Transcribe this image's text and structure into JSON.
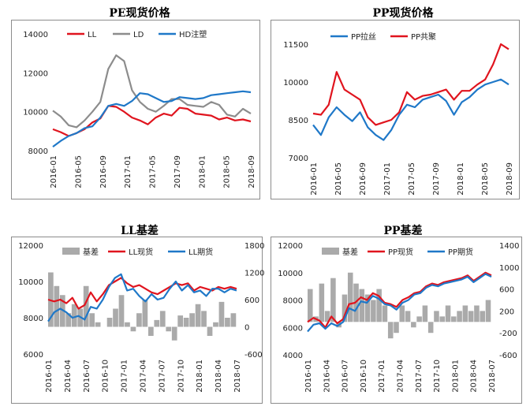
{
  "chart_data": [
    {
      "id": "pe",
      "type": "line",
      "title": "PE现货价格",
      "ylim": [
        8000,
        14000
      ],
      "yticks": [
        "14000",
        "12000",
        "10000",
        "8000"
      ],
      "xlabels": [
        "2016-01",
        "2016-05",
        "2016-09",
        "2017-01",
        "2017-05",
        "2017-09",
        "2018-01",
        "2018-05",
        "2018-09"
      ],
      "legend_position": "top-left",
      "series": [
        {
          "name": "LL",
          "color": "#e0141e",
          "values": [
            9100,
            8950,
            8750,
            8900,
            9100,
            9450,
            9650,
            10300,
            10250,
            10000,
            9700,
            9550,
            9350,
            9700,
            9900,
            9800,
            10200,
            10150,
            9900,
            9850,
            9800,
            9600,
            9700,
            9550,
            9600,
            9500
          ]
        },
        {
          "name": "LD",
          "color": "#8c8c8c",
          "values": [
            10050,
            9750,
            9300,
            9200,
            9550,
            10000,
            10500,
            12200,
            12900,
            12600,
            11100,
            10500,
            10150,
            10000,
            10300,
            10650,
            10650,
            10350,
            10300,
            10250,
            10500,
            10350,
            9850,
            9750,
            10150,
            9900
          ]
        },
        {
          "name": "HD注塑",
          "color": "#1f78c8",
          "values": [
            8200,
            8500,
            8750,
            8900,
            9150,
            9250,
            9700,
            10300,
            10400,
            10300,
            10550,
            10950,
            10900,
            10700,
            10500,
            10550,
            10750,
            10700,
            10650,
            10700,
            10850,
            10900,
            10950,
            11000,
            11050,
            11000
          ]
        }
      ]
    },
    {
      "id": "pp",
      "type": "line",
      "title": "PP现货价格",
      "ylim": [
        7000,
        11500
      ],
      "yticks": [
        "11500",
        "10000",
        "8500",
        "7000"
      ],
      "xlabels": [
        "2016-01",
        "2016-05",
        "2016-09",
        "2017-01",
        "2017-05",
        "2017-09",
        "2018-01",
        "2018-05",
        "2018-09"
      ],
      "legend_position": "top-left",
      "series": [
        {
          "name": "PP拉丝",
          "color": "#1f78c8",
          "values": [
            8300,
            7900,
            8600,
            9000,
            8700,
            8450,
            8800,
            8200,
            7900,
            7700,
            8100,
            8700,
            9100,
            9000,
            9300,
            9400,
            9500,
            9250,
            8700,
            9200,
            9400,
            9700,
            9900,
            10000,
            10100,
            9900
          ]
        },
        {
          "name": "PP共聚",
          "color": "#e0141e",
          "values": [
            8750,
            8700,
            9100,
            10400,
            9700,
            9500,
            9300,
            8600,
            8300,
            8400,
            8500,
            8800,
            9600,
            9300,
            9450,
            9500,
            9600,
            9700,
            9300,
            9650,
            9650,
            9900,
            10100,
            10700,
            11500,
            11300
          ]
        }
      ]
    },
    {
      "id": "ll_basis",
      "type": "line",
      "title": "LL基差",
      "ylim": [
        6000,
        12000
      ],
      "y2lim": [
        -600,
        1800
      ],
      "yticks": [
        "12000",
        "10000",
        "8000",
        "6000"
      ],
      "y2ticks": [
        "1800",
        "1200",
        "600",
        "0",
        "-600"
      ],
      "xlabels": [
        "2016-01",
        "2016-04",
        "2016-07",
        "2016-10",
        "2017-01",
        "2017-04",
        "2017-07",
        "2017-10",
        "2018-01",
        "2018-04",
        "2018-07"
      ],
      "legend_position": "top-center",
      "basis": {
        "name": "基差",
        "color": "#aaaaaa",
        "values": [
          1200,
          900,
          700,
          300,
          500,
          400,
          900,
          300,
          100,
          0,
          200,
          400,
          700,
          100,
          -100,
          300,
          600,
          -200,
          150,
          350,
          -100,
          -300,
          250,
          200,
          300,
          500,
          350,
          -200,
          100,
          550,
          200,
          300
        ]
      },
      "series": [
        {
          "name": "LL现货",
          "color": "#e0141e",
          "values": [
            9000,
            8900,
            9000,
            8800,
            9100,
            8500,
            8700,
            9400,
            8900,
            9300,
            9800,
            10000,
            10200,
            9900,
            9700,
            9800,
            9600,
            9400,
            9300,
            9500,
            9700,
            9900,
            9800,
            9900,
            9500,
            9700,
            9600,
            9500,
            9700,
            9600,
            9700,
            9600
          ]
        },
        {
          "name": "LL期货",
          "color": "#1f78c8",
          "values": [
            7800,
            8300,
            8500,
            8300,
            8000,
            8100,
            7900,
            8600,
            8500,
            9000,
            9700,
            10200,
            10400,
            9500,
            9600,
            9200,
            8900,
            9300,
            9000,
            9100,
            9600,
            10000,
            9500,
            9800,
            9400,
            9500,
            9200,
            9600,
            9600,
            9400,
            9600,
            9500
          ]
        }
      ]
    },
    {
      "id": "pp_basis",
      "type": "line",
      "title": "PP基差",
      "ylim": [
        4000,
        12000
      ],
      "y2lim": [
        -600,
        1400
      ],
      "yticks": [
        "12000",
        "10000",
        "8000",
        "6000",
        "4000"
      ],
      "y2ticks": [
        "1400",
        "1000",
        "600",
        "200",
        "-200",
        "-600"
      ],
      "xlabels": [
        "2016-01",
        "2016-04",
        "2016-07",
        "2016-10",
        "2017-01",
        "2017-04",
        "2017-07",
        "2017-10",
        "2018-01",
        "2018-04",
        "2018-07"
      ],
      "legend_position": "top-center",
      "basis": {
        "name": "基差",
        "color": "#aaaaaa",
        "values": [
          600,
          100,
          700,
          200,
          800,
          -100,
          500,
          900,
          700,
          600,
          500,
          400,
          600,
          300,
          -300,
          -200,
          300,
          200,
          -100,
          100,
          300,
          -200,
          200,
          100,
          300,
          100,
          200,
          300,
          200,
          300,
          200,
          400
        ]
      },
      "series": [
        {
          "name": "PP现货",
          "color": "#e0141e",
          "values": [
            6400,
            6700,
            6500,
            6000,
            6800,
            6300,
            6600,
            7700,
            7800,
            8200,
            8000,
            8500,
            8300,
            7800,
            7700,
            7500,
            8000,
            8200,
            8500,
            8600,
            9000,
            9200,
            9100,
            9300,
            9400,
            9500,
            9600,
            9800,
            9400,
            9700,
            10000,
            9800
          ]
        },
        {
          "name": "PP期货",
          "color": "#1f78c8",
          "values": [
            5700,
            6200,
            6300,
            5900,
            6300,
            6100,
            6400,
            7400,
            7200,
            7900,
            7800,
            8300,
            8100,
            7700,
            7600,
            7300,
            7800,
            8000,
            8400,
            8500,
            8900,
            9100,
            9000,
            9200,
            9300,
            9400,
            9500,
            9700,
            9300,
            9600,
            9900,
            9700
          ]
        }
      ]
    }
  ]
}
